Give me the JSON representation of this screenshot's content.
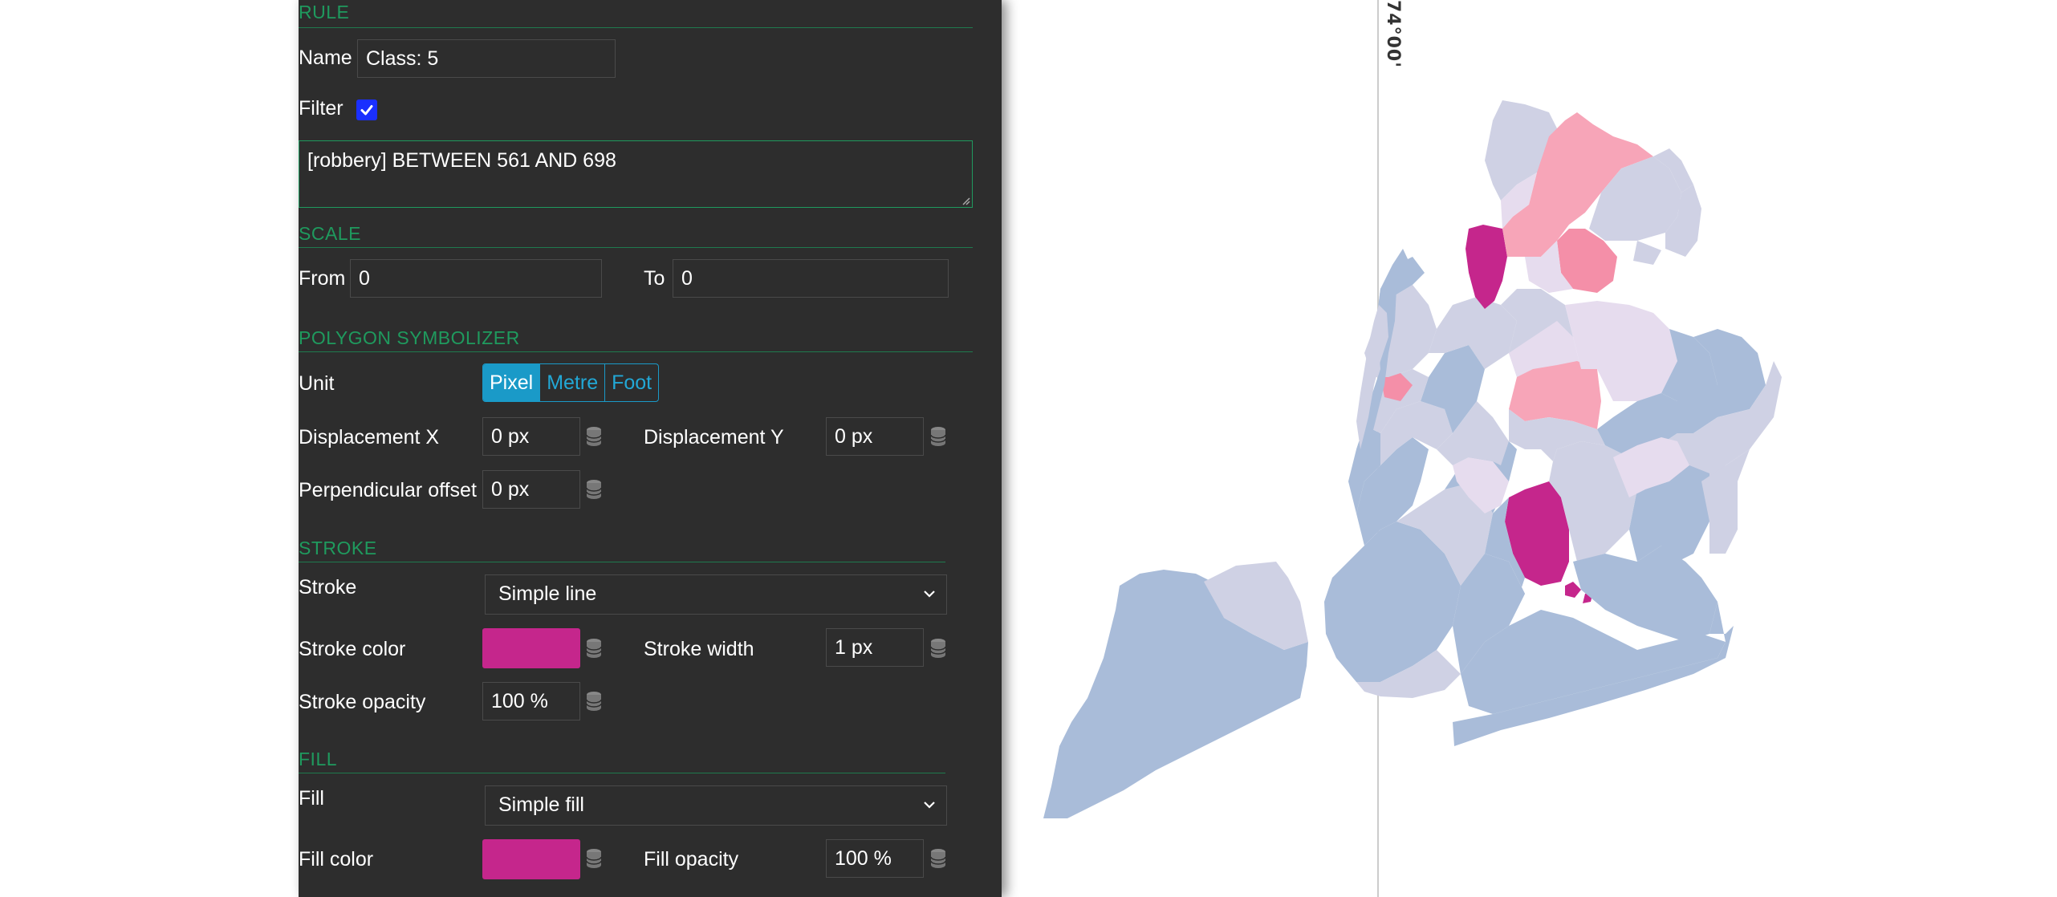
{
  "rule": {
    "section_label": "RULE",
    "name_label": "Name",
    "name_value": "Class: 5",
    "filter_label": "Filter",
    "filter_checked": true,
    "filter_expression": "[robbery] BETWEEN 561 AND 698"
  },
  "scale": {
    "section_label": "SCALE",
    "from_label": "From",
    "from_value": "0",
    "to_label": "To",
    "to_value": "0"
  },
  "polygon_symbolizer": {
    "section_label": "POLYGON SYMBOLIZER",
    "unit_label": "Unit",
    "unit_options": [
      "Pixel",
      "Metre",
      "Foot"
    ],
    "unit_selected": "Pixel",
    "displacement_x_label": "Displacement X",
    "displacement_x_value": "0 px",
    "displacement_y_label": "Displacement Y",
    "displacement_y_value": "0 px",
    "perpendicular_offset_label": "Perpendicular offset",
    "perpendicular_offset_value": "0 px"
  },
  "stroke": {
    "section_label": "STROKE",
    "stroke_label": "Stroke",
    "stroke_value": "Simple line",
    "stroke_color_label": "Stroke color",
    "stroke_color": "#c5268c",
    "stroke_width_label": "Stroke width",
    "stroke_width_value": "1 px",
    "stroke_opacity_label": "Stroke opacity",
    "stroke_opacity_value": "100 %"
  },
  "fill": {
    "section_label": "FILL",
    "fill_label": "Fill",
    "fill_value": "Simple fill",
    "fill_color_label": "Fill color",
    "fill_color": "#c5268c",
    "fill_opacity_label": "Fill opacity",
    "fill_opacity_value": "100 %"
  },
  "map": {
    "axis_label": "74°00'",
    "class_colors": [
      "#a9bcd9",
      "#cfd1e4",
      "#e6dcee",
      "#f7a5b8",
      "#f48fa8",
      "#c5268c"
    ]
  },
  "colors": {
    "panel_bg": "#2d2d2d",
    "section_accent": "#1f9a5e",
    "unit_accent": "#1a9ac8",
    "checkbox": "#1a2fff"
  }
}
